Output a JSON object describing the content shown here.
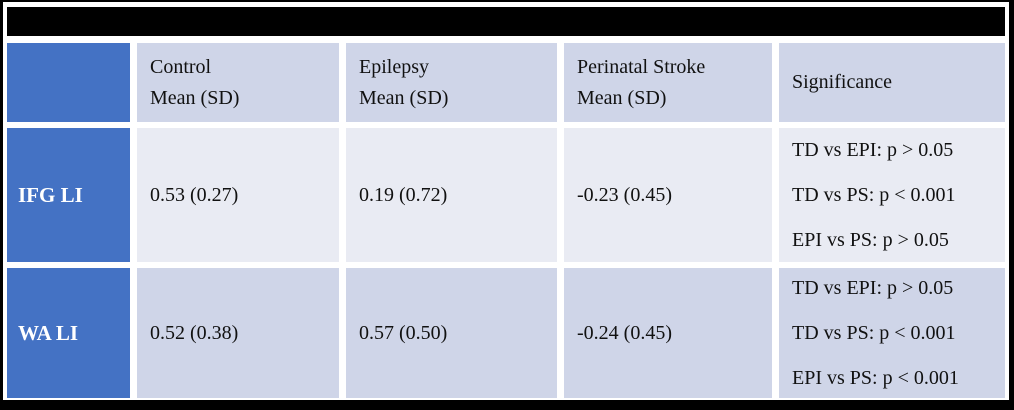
{
  "title_bar": {
    "text": ""
  },
  "table": {
    "corner_label": "",
    "columns": [
      {
        "line1": "Control",
        "line2": "Mean (SD)"
      },
      {
        "line1": "Epilepsy",
        "line2": "Mean (SD)"
      },
      {
        "line1": "Perinatal Stroke",
        "line2": "Mean (SD)"
      },
      {
        "line1": "Significance",
        "line2": ""
      }
    ],
    "rows": [
      {
        "header": "IFG LI",
        "control": "0.53 (0.27)",
        "epilepsy": "0.19 (0.72)",
        "perinatal_stroke": "-0.23 (0.45)",
        "significance": [
          "TD vs EPI: p > 0.05",
          "TD vs PS: p < 0.001",
          "EPI vs PS: p > 0.05"
        ]
      },
      {
        "header": "WA LI",
        "control": "0.52 (0.38)",
        "epilepsy": "0.57 (0.50)",
        "perinatal_stroke": "-0.24 (0.45)",
        "significance": [
          "TD vs EPI: p > 0.05",
          "TD vs PS: p < 0.001",
          "EPI vs PS: p < 0.001"
        ]
      }
    ]
  },
  "colors": {
    "accent_blue": "#4472c4",
    "band_dark": "#cfd5e8",
    "band_light": "#e9ebf3",
    "title_bar": "#000000",
    "outer_border": "#000000",
    "header_text_on_blue": "#ffffff",
    "body_text": "#111111"
  }
}
